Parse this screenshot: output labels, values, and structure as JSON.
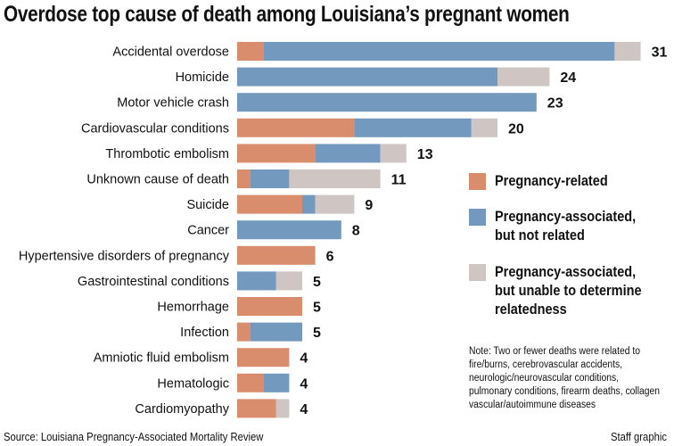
{
  "chart_data": {
    "type": "bar",
    "orientation": "horizontal",
    "stacked": true,
    "title": "Overdose top cause of death among Louisiana’s pregnant women",
    "categories": [
      "Accidental overdose",
      "Homicide",
      "Motor vehicle crash",
      "Cardiovascular conditions",
      "Thrombotic embolism",
      "Unknown cause of death",
      "Suicide",
      "Cancer",
      "Hypertensive disorders of pregnancy",
      "Gastrointestinal conditions",
      "Hemorrhage",
      "Infection",
      "Amniotic fluid embolism",
      "Hematologic",
      "Cardiomyopathy"
    ],
    "totals": [
      31,
      24,
      23,
      20,
      13,
      11,
      9,
      8,
      6,
      5,
      5,
      5,
      4,
      4,
      4
    ],
    "series": [
      {
        "name": "Pregnancy-related",
        "color": "#d98d6c",
        "values": [
          2,
          0,
          0,
          9,
          6,
          1,
          5,
          0,
          6,
          0,
          5,
          1,
          4,
          2,
          3
        ]
      },
      {
        "name": "Pregnancy-associated, but not related",
        "color": "#7399be",
        "values": [
          27,
          20,
          23,
          9,
          5,
          3,
          1,
          8,
          0,
          3,
          0,
          4,
          0,
          2,
          0
        ]
      },
      {
        "name": "Pregnancy-associated, but unable to determine relatedness",
        "color": "#cfc6c4",
        "values": [
          2,
          4,
          0,
          2,
          2,
          7,
          3,
          0,
          0,
          2,
          0,
          0,
          0,
          0,
          1
        ]
      }
    ],
    "legend": {
      "placement": "right",
      "items": [
        [
          "Pregnancy-related"
        ],
        [
          "Pregnancy-associated,",
          "but not related"
        ],
        [
          "Pregnancy-associated,",
          "but unable to determine",
          "relatedness"
        ]
      ]
    },
    "grid": false
  },
  "note": "Note: Two or fewer deaths were related to fire/burns, cerebrovascular accidents, neurologic/neurovascular conditions, pulmonary conditions, firearm deaths, collagen vascular/autoimmune diseases",
  "source": "Source: Louisiana Pregnancy-Associated Mortality Review",
  "credit": "Staff graphic"
}
